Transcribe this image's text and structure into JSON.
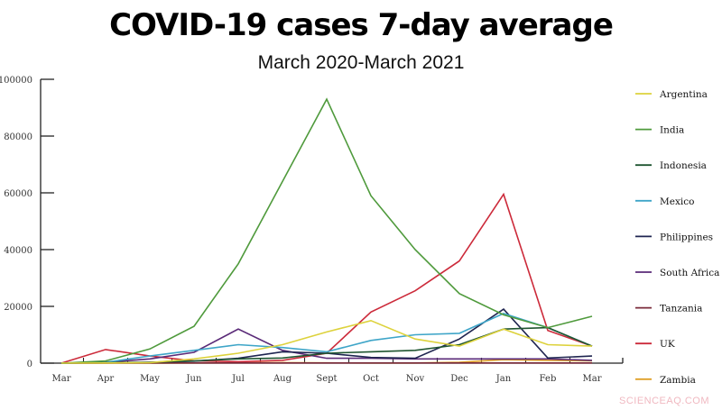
{
  "chart_data": {
    "type": "line",
    "title": "COVID-19 cases 7-day average",
    "subtitle": "March 2020-March 2021",
    "categories": [
      "Mar",
      "Apr",
      "May",
      "Jun",
      "Jul",
      "Aug",
      "Sept",
      "Oct",
      "Nov",
      "Dec",
      "Jan",
      "Feb",
      "Mar"
    ],
    "ylim": [
      0,
      100000
    ],
    "yticks": [
      0,
      20000,
      40000,
      60000,
      80000,
      100000
    ],
    "grid": false,
    "legend_placement": "right",
    "series": [
      {
        "name": "Argentina",
        "color": "#ddd23c",
        "values": [
          0,
          50,
          200,
          1500,
          3500,
          6500,
          11000,
          15000,
          8500,
          6000,
          12000,
          6500,
          6000
        ]
      },
      {
        "name": "India",
        "color": "#4f9a3c",
        "values": [
          0,
          800,
          5000,
          13000,
          35000,
          64000,
          93000,
          59000,
          40000,
          24500,
          17000,
          12500,
          16500
        ]
      },
      {
        "name": "Indonesia",
        "color": "#1f5530",
        "values": [
          0,
          200,
          300,
          800,
          1500,
          1800,
          3500,
          4000,
          4500,
          6500,
          12000,
          12500,
          6000
        ]
      },
      {
        "name": "Mexico",
        "color": "#3ea5c8",
        "values": [
          0,
          300,
          2500,
          4500,
          6500,
          5500,
          4000,
          8000,
          10000,
          10500,
          17500,
          12500,
          6000
        ]
      },
      {
        "name": "Philippines",
        "color": "#1f2550",
        "values": [
          0,
          100,
          300,
          700,
          1700,
          4000,
          3500,
          2000,
          1700,
          8500,
          19000,
          1800,
          2500
        ]
      },
      {
        "name": "South Africa",
        "color": "#5a2a78",
        "values": [
          0,
          300,
          1500,
          3800,
          12000,
          4500,
          1700,
          1700,
          1500,
          1500,
          1500,
          1500,
          1000
        ]
      },
      {
        "name": "Tanzania",
        "color": "#7a2a3a",
        "values": [
          0,
          20,
          50,
          50,
          50,
          50,
          50,
          50,
          50,
          50,
          50,
          50,
          50
        ]
      },
      {
        "name": "UK",
        "color": "#cc2a3a",
        "values": [
          0,
          4800,
          2500,
          800,
          500,
          1000,
          3500,
          18000,
          25500,
          36000,
          59500,
          11500,
          6000
        ]
      },
      {
        "name": "Zambia",
        "color": "#e0a028",
        "values": [
          0,
          10,
          20,
          50,
          100,
          200,
          100,
          50,
          50,
          300,
          1200,
          1000,
          800
        ]
      }
    ]
  },
  "watermark": "SCIENCEAQ.COM"
}
